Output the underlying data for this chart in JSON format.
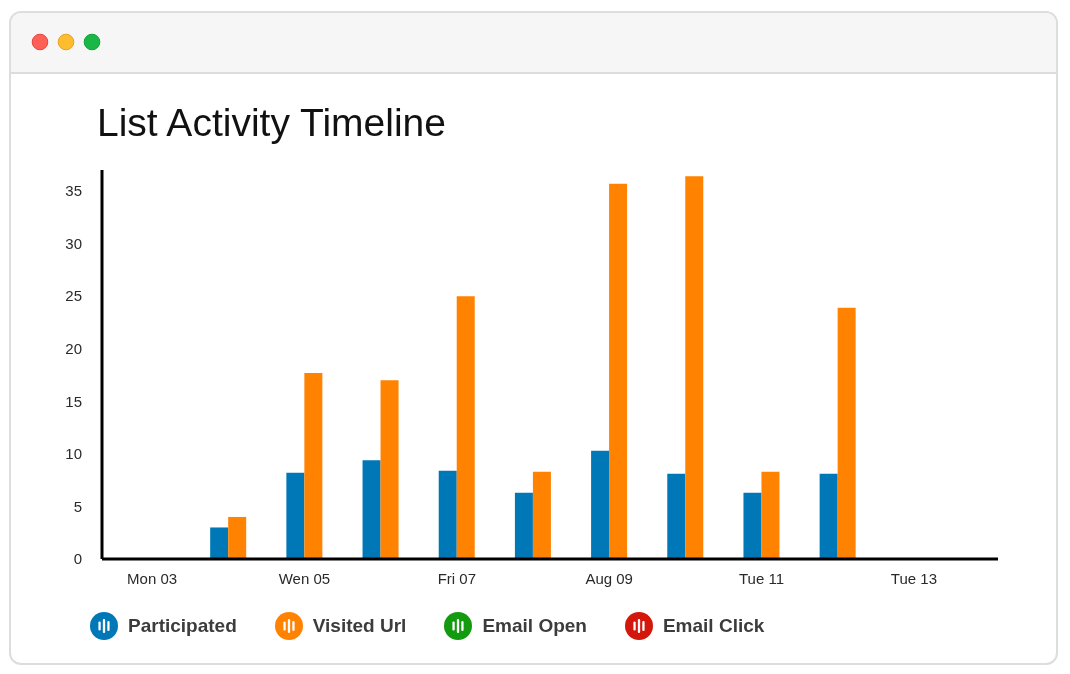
{
  "chart_data": {
    "type": "bar",
    "title": "List Activity Timeline",
    "categories": [
      "Mon 03",
      null,
      "Wen 05",
      null,
      "Fri 07",
      null,
      "Aug 09",
      null,
      "Tue 11",
      null,
      "Tue 13"
    ],
    "series": [
      {
        "name": "Participated",
        "color": "#0077b7",
        "values": [
          null,
          3,
          8.2,
          9.4,
          8.4,
          6.3,
          10.3,
          8.1,
          6.3,
          8.1,
          null
        ]
      },
      {
        "name": "Visited Url",
        "color": "#ff8200",
        "values": [
          null,
          4,
          17.7,
          17,
          25,
          8.3,
          35.7,
          36.4,
          8.3,
          23.9,
          null
        ]
      },
      {
        "name": "Email Open",
        "color": "#139a0f",
        "values": [
          null,
          null,
          null,
          null,
          null,
          null,
          null,
          null,
          null,
          null,
          null
        ]
      },
      {
        "name": "Email Click",
        "color": "#d4170b",
        "values": [
          null,
          null,
          null,
          null,
          null,
          null,
          null,
          null,
          null,
          null,
          null
        ]
      }
    ],
    "ylim": [
      0,
      37
    ],
    "yticks": [
      0,
      5,
      10,
      15,
      20,
      25,
      30,
      35
    ],
    "legend": "bottom left"
  }
}
